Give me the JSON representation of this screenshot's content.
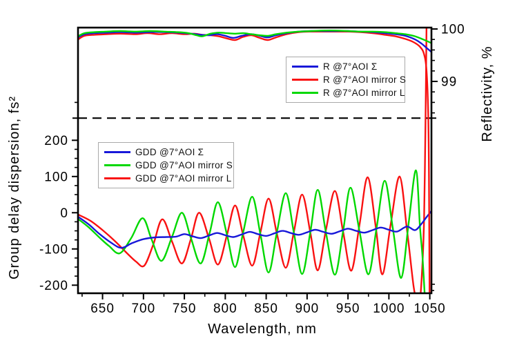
{
  "chart_data": {
    "type": "line",
    "title": "",
    "x_axis": {
      "label": "Wavelength, nm",
      "range": [
        620,
        1052
      ],
      "major_ticks": [
        650,
        700,
        750,
        800,
        850,
        900,
        950,
        1000,
        1050
      ],
      "minor_ticks": [
        625,
        675,
        725,
        775,
        825,
        875,
        925,
        975,
        1025
      ]
    },
    "y_axis_left": {
      "label": "Group delay dispersion, fs²",
      "major_ticks": [
        200,
        100,
        0,
        -100,
        -200
      ],
      "minor_ticks": [
        175,
        150,
        125,
        75,
        50,
        25,
        -25,
        -50,
        -75,
        -125,
        -150,
        -175
      ],
      "visible_range": [
        -222,
        260
      ]
    },
    "y_axis_right": {
      "label": "Reflectivity, %",
      "major_ticks": [
        100,
        99
      ],
      "minor_ticks": [
        99.8,
        99.6,
        99.4,
        99.2,
        98.8,
        98.6,
        98.4
      ],
      "boundary_value": 98.3,
      "visible_range": [
        98.3,
        100.05
      ]
    },
    "reference_line": {
      "style": "dashed",
      "axis": "right",
      "value": 98.3,
      "color": "#000000"
    },
    "colors": {
      "sum": "#1818d9",
      "mirror_s_gdd": "#00d800",
      "mirror_l_gdd": "#f91111"
    },
    "series": [
      {
        "id": "r_sum",
        "name": "R @7°AOI Σ",
        "axis": "right",
        "color": "#1818d9",
        "points": [
          [
            620,
            99.84
          ],
          [
            628,
            99.9
          ],
          [
            640,
            99.92
          ],
          [
            655,
            99.93
          ],
          [
            672,
            99.94
          ],
          [
            690,
            99.93
          ],
          [
            708,
            99.94
          ],
          [
            725,
            99.94
          ],
          [
            742,
            99.93
          ],
          [
            758,
            99.91
          ],
          [
            770,
            99.89
          ],
          [
            780,
            99.88
          ],
          [
            790,
            99.9
          ],
          [
            800,
            99.87
          ],
          [
            810,
            99.83
          ],
          [
            820,
            99.87
          ],
          [
            832,
            99.9
          ],
          [
            842,
            99.87
          ],
          [
            852,
            99.84
          ],
          [
            862,
            99.88
          ],
          [
            875,
            99.92
          ],
          [
            890,
            99.95
          ],
          [
            905,
            99.96
          ],
          [
            920,
            99.96
          ],
          [
            935,
            99.96
          ],
          [
            950,
            99.96
          ],
          [
            965,
            99.95
          ],
          [
            980,
            99.94
          ],
          [
            995,
            99.92
          ],
          [
            1008,
            99.9
          ],
          [
            1020,
            99.87
          ],
          [
            1032,
            99.8
          ],
          [
            1040,
            99.72
          ],
          [
            1046,
            99.64
          ],
          [
            1052,
            99.56
          ]
        ]
      },
      {
        "id": "r_S",
        "name": "R @7°AOI mirror S",
        "axis": "right",
        "color": "#f91111",
        "points": [
          [
            620,
            99.8
          ],
          [
            628,
            99.87
          ],
          [
            640,
            99.89
          ],
          [
            655,
            99.9
          ],
          [
            672,
            99.91
          ],
          [
            690,
            99.9
          ],
          [
            705,
            99.92
          ],
          [
            720,
            99.9
          ],
          [
            735,
            99.92
          ],
          [
            750,
            99.9
          ],
          [
            762,
            99.91
          ],
          [
            772,
            99.89
          ],
          [
            782,
            99.88
          ],
          [
            792,
            99.86
          ],
          [
            802,
            99.82
          ],
          [
            812,
            99.79
          ],
          [
            822,
            99.85
          ],
          [
            832,
            99.88
          ],
          [
            842,
            99.83
          ],
          [
            852,
            99.79
          ],
          [
            862,
            99.84
          ],
          [
            875,
            99.9
          ],
          [
            890,
            99.94
          ],
          [
            905,
            99.95
          ],
          [
            920,
            99.95
          ],
          [
            935,
            99.95
          ],
          [
            950,
            99.95
          ],
          [
            965,
            99.94
          ],
          [
            980,
            99.92
          ],
          [
            995,
            99.89
          ],
          [
            1008,
            99.86
          ],
          [
            1020,
            99.81
          ],
          [
            1030,
            99.75
          ],
          [
            1038,
            99.66
          ],
          [
            1043,
            99.52
          ],
          [
            1046,
            99.2
          ],
          [
            1048,
            98.4
          ],
          [
            1049,
            97.2
          ],
          [
            1050,
            94.0
          ]
        ]
      },
      {
        "id": "r_L",
        "name": "R @7°AOI mirror L",
        "axis": "right",
        "color": "#00d800",
        "points": [
          [
            620,
            99.86
          ],
          [
            628,
            99.92
          ],
          [
            640,
            99.94
          ],
          [
            655,
            99.95
          ],
          [
            672,
            99.96
          ],
          [
            690,
            99.95
          ],
          [
            708,
            99.96
          ],
          [
            725,
            99.95
          ],
          [
            742,
            99.94
          ],
          [
            755,
            99.92
          ],
          [
            765,
            99.88
          ],
          [
            772,
            99.86
          ],
          [
            782,
            99.91
          ],
          [
            792,
            99.93
          ],
          [
            802,
            99.92
          ],
          [
            812,
            99.91
          ],
          [
            822,
            99.92
          ],
          [
            832,
            99.9
          ],
          [
            842,
            99.88
          ],
          [
            852,
            99.87
          ],
          [
            862,
            99.9
          ],
          [
            875,
            99.93
          ],
          [
            890,
            99.95
          ],
          [
            905,
            99.96
          ],
          [
            920,
            99.97
          ],
          [
            935,
            99.97
          ],
          [
            950,
            99.96
          ],
          [
            965,
            99.95
          ],
          [
            980,
            99.95
          ],
          [
            995,
            99.94
          ],
          [
            1008,
            99.92
          ],
          [
            1020,
            99.9
          ],
          [
            1032,
            99.86
          ],
          [
            1042,
            99.8
          ],
          [
            1052,
            99.73
          ]
        ]
      },
      {
        "id": "gdd_sum",
        "name": "GDD @7°AOI Σ",
        "axis": "left",
        "color": "#1818d9",
        "points": [
          [
            620,
            -11
          ],
          [
            633,
            -32
          ],
          [
            646,
            -58
          ],
          [
            660,
            -82
          ],
          [
            673,
            -97
          ],
          [
            686,
            -84
          ],
          [
            700,
            -73
          ],
          [
            715,
            -68
          ],
          [
            728,
            -67
          ],
          [
            740,
            -66
          ],
          [
            750,
            -59
          ],
          [
            760,
            -65
          ],
          [
            770,
            -70
          ],
          [
            780,
            -63
          ],
          [
            790,
            -56
          ],
          [
            800,
            -62
          ],
          [
            810,
            -67
          ],
          [
            820,
            -60
          ],
          [
            830,
            -53
          ],
          [
            840,
            -59
          ],
          [
            850,
            -64
          ],
          [
            860,
            -57
          ],
          [
            870,
            -50
          ],
          [
            880,
            -56
          ],
          [
            890,
            -61
          ],
          [
            900,
            -54
          ],
          [
            910,
            -47
          ],
          [
            920,
            -53
          ],
          [
            930,
            -58
          ],
          [
            940,
            -51
          ],
          [
            950,
            -44
          ],
          [
            960,
            -50
          ],
          [
            970,
            -55
          ],
          [
            980,
            -48
          ],
          [
            990,
            -41
          ],
          [
            1000,
            -47
          ],
          [
            1010,
            -52
          ],
          [
            1022,
            -38
          ],
          [
            1032,
            -48
          ],
          [
            1040,
            -30
          ],
          [
            1046,
            -12
          ],
          [
            1052,
            5
          ]
        ]
      },
      {
        "id": "gdd_S",
        "name": "GDD @7°AOI mirror S",
        "axis": "left",
        "color": "#00d800",
        "points": [
          [
            620,
            -17
          ],
          [
            633,
            -40
          ],
          [
            646,
            -68
          ],
          [
            658,
            -92
          ],
          [
            671,
            -112
          ],
          [
            685,
            -70
          ],
          [
            699,
            -15
          ],
          [
            710,
            -74
          ],
          [
            722,
            -133
          ],
          [
            735,
            -66
          ],
          [
            747,
            0
          ],
          [
            758,
            -70
          ],
          [
            770,
            -140
          ],
          [
            781,
            -55
          ],
          [
            791,
            29
          ],
          [
            802,
            -60
          ],
          [
            812,
            -150
          ],
          [
            822,
            -53
          ],
          [
            833,
            44
          ],
          [
            843,
            -60
          ],
          [
            853,
            -165
          ],
          [
            863,
            -55
          ],
          [
            874,
            54
          ],
          [
            884,
            -57
          ],
          [
            894,
            -169
          ],
          [
            904,
            -53
          ],
          [
            913,
            63
          ],
          [
            923,
            -54
          ],
          [
            934,
            -171
          ],
          [
            944,
            -51
          ],
          [
            953,
            69
          ],
          [
            964,
            -50
          ],
          [
            975,
            -170
          ],
          [
            985,
            -41
          ],
          [
            995,
            88
          ],
          [
            1005,
            -46
          ],
          [
            1015,
            -180
          ],
          [
            1024,
            -31
          ],
          [
            1033,
            117
          ],
          [
            1038,
            -40
          ],
          [
            1041,
            -120
          ],
          [
            1044,
            -235
          ]
        ]
      },
      {
        "id": "gdd_L",
        "name": "GDD @7°AOI mirror L",
        "axis": "left",
        "color": "#f91111",
        "points": [
          [
            620,
            -5
          ],
          [
            635,
            -22
          ],
          [
            650,
            -48
          ],
          [
            665,
            -78
          ],
          [
            680,
            -112
          ],
          [
            691,
            -135
          ],
          [
            701,
            -146
          ],
          [
            712,
            -88
          ],
          [
            723,
            -18
          ],
          [
            735,
            -80
          ],
          [
            747,
            -140
          ],
          [
            758,
            -72
          ],
          [
            768,
            0
          ],
          [
            780,
            -70
          ],
          [
            791,
            -143
          ],
          [
            802,
            -62
          ],
          [
            812,
            20
          ],
          [
            822,
            -63
          ],
          [
            833,
            -146
          ],
          [
            843,
            -54
          ],
          [
            853,
            39
          ],
          [
            863,
            -57
          ],
          [
            874,
            -152
          ],
          [
            884,
            -51
          ],
          [
            894,
            50
          ],
          [
            904,
            -55
          ],
          [
            913,
            -159
          ],
          [
            923,
            -48
          ],
          [
            934,
            60
          ],
          [
            944,
            -52
          ],
          [
            954,
            -160
          ],
          [
            964,
            -34
          ],
          [
            974,
            98
          ],
          [
            984,
            -40
          ],
          [
            992,
            -170
          ],
          [
            1002,
            -35
          ],
          [
            1013,
            100
          ],
          [
            1022,
            -45
          ],
          [
            1030,
            -200
          ],
          [
            1034,
            -238
          ],
          [
            1038,
            -240
          ],
          [
            1041,
            -140
          ],
          [
            1043,
            -20
          ],
          [
            1044,
            120
          ],
          [
            1045,
            300
          ],
          [
            1046,
            520
          ]
        ]
      }
    ],
    "draw_order": [
      "gdd_L",
      "gdd_S",
      "gdd_sum",
      "r_S",
      "r_sum",
      "r_L"
    ],
    "legends": {
      "reflectivity": {
        "items": [
          {
            "series": "r_sum",
            "label": "R @7°AOI Σ",
            "color": "#1818d9"
          },
          {
            "series": "r_S",
            "label": "R @7°AOI mirror S",
            "color": "#f91111"
          },
          {
            "series": "r_L",
            "label": "R @7°AOI mirror L",
            "color": "#00d800"
          }
        ]
      },
      "gdd": {
        "items": [
          {
            "series": "gdd_sum",
            "label": "GDD @7°AOI Σ",
            "color": "#1818d9"
          },
          {
            "series": "gdd_S",
            "label": "GDD @7°AOI mirror S",
            "color": "#00d800"
          },
          {
            "series": "gdd_L",
            "label": "GDD @7°AOI mirror L",
            "color": "#f91111"
          }
        ]
      }
    }
  }
}
